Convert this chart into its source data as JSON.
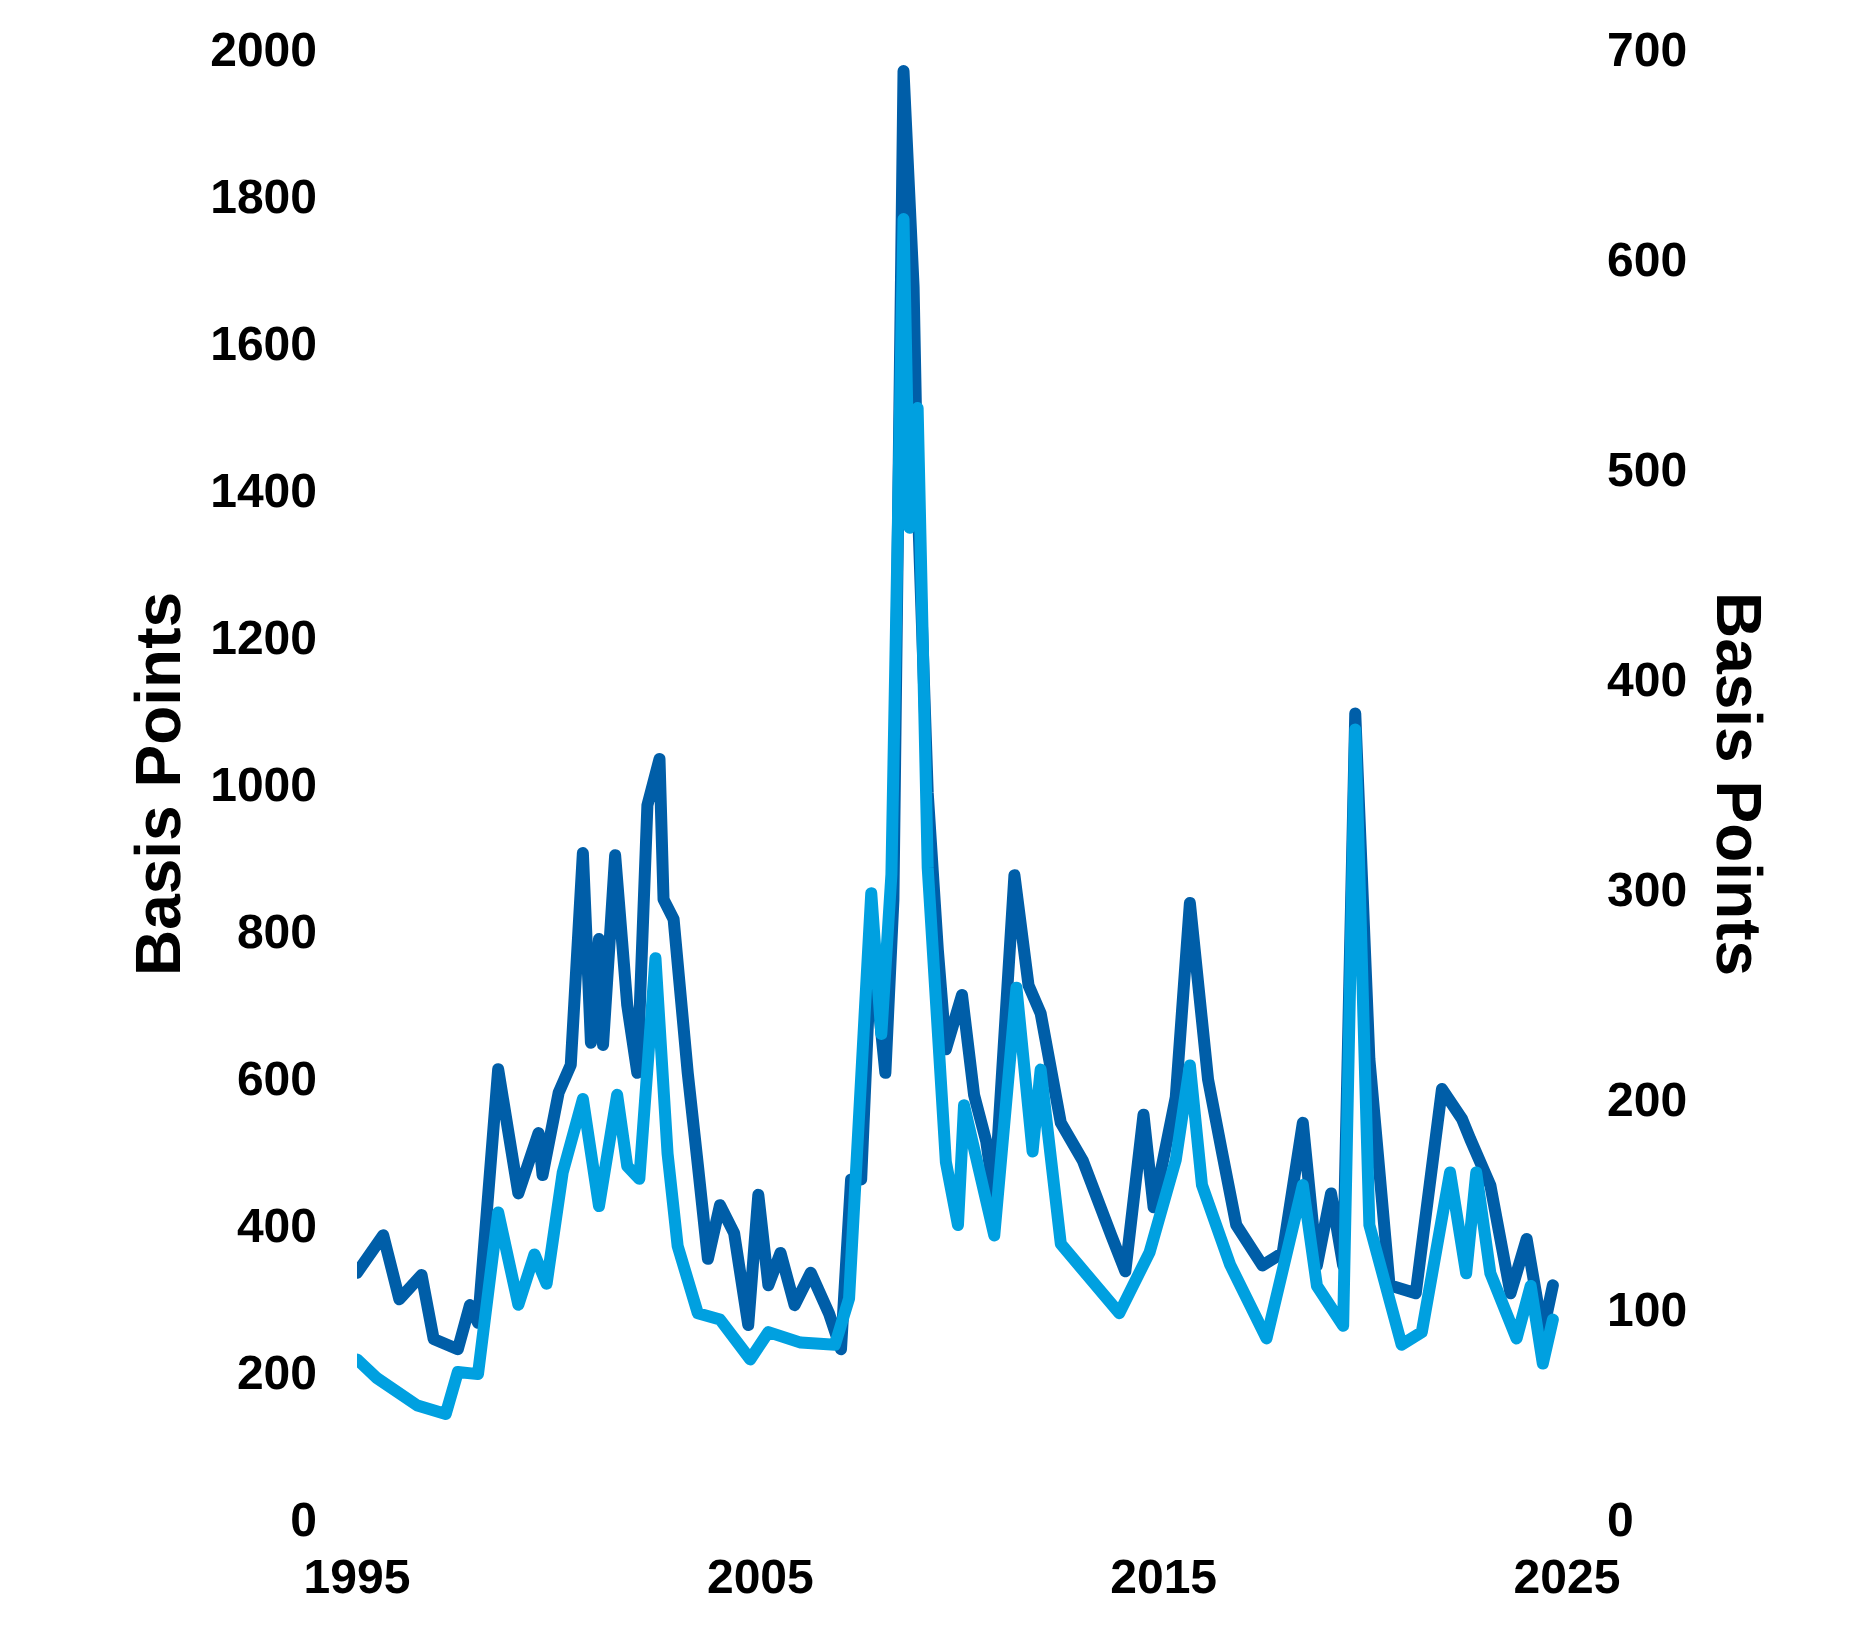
{
  "chart_data": {
    "type": "line",
    "ylabel": "Basis Points",
    "y2label": "Basis Points",
    "xlim": [
      1995,
      2025
    ],
    "xticks": [
      1995,
      2005,
      2015,
      2025
    ],
    "ylim": [
      0,
      2000
    ],
    "yticks": [
      0,
      200,
      400,
      600,
      800,
      1000,
      1200,
      1400,
      1600,
      1800,
      2000
    ],
    "y2lim": [
      0,
      700
    ],
    "y2ticks": [
      0,
      100,
      200,
      300,
      400,
      500,
      600,
      700
    ],
    "grid": false,
    "marker": "none",
    "line_style": "solid",
    "series": [
      {
        "color": "#005ea8",
        "x": [
          1995.0,
          1995.65,
          1996.05,
          1996.6,
          1996.9,
          1997.5,
          1997.8,
          1998.0,
          1998.5,
          1999.0,
          1999.5,
          1999.6,
          2000.0,
          2000.3,
          2000.6,
          2000.8,
          2001.0,
          2001.1,
          2001.4,
          2001.7,
          2001.95,
          2002.2,
          2002.5,
          2002.6,
          2002.85,
          2003.2,
          2003.45,
          2003.7,
          2004.0,
          2004.35,
          2004.7,
          2004.95,
          2005.2,
          2005.5,
          2005.85,
          2006.25,
          2006.7,
          2007.0,
          2007.25,
          2007.5,
          2007.7,
          2007.9,
          2008.1,
          2008.3,
          2008.55,
          2008.8,
          2008.9,
          2009.15,
          2009.4,
          2009.6,
          2010.0,
          2010.3,
          2010.6,
          2010.8,
          2011.3,
          2011.65,
          2011.95,
          2012.45,
          2013.0,
          2013.7,
          2014.05,
          2014.5,
          2014.75,
          2015.3,
          2015.65,
          2016.1,
          2016.45,
          2016.8,
          2017.45,
          2017.95,
          2018.45,
          2018.8,
          2019.15,
          2019.45,
          2019.75,
          2020.1,
          2020.6,
          2021.25,
          2021.9,
          2022.4,
          2022.6,
          2023.1,
          2023.6,
          2024.0,
          2024.4,
          2024.65
        ],
        "values": [
          335,
          386,
          299,
          332,
          245,
          231,
          291,
          267,
          612,
          443,
          525,
          468,
          580,
          618,
          906,
          648,
          789,
          645,
          903,
          699,
          607,
          971,
          1034,
          843,
          816,
          607,
          482,
          354,
          427,
          389,
          264,
          441,
          318,
          362,
          291,
          335,
          280,
          231,
          462,
          462,
          716,
          716,
          607,
          843,
          1970,
          1676,
          1388,
          988,
          775,
          639,
          713,
          577,
          514,
          438,
          876,
          726,
          688,
          539,
          487,
          386,
          337,
          550,
          424,
          574,
          838,
          598,
          498,
          400,
          345,
          362,
          539,
          345,
          443,
          345,
          1096,
          626,
          318,
          307,
          585,
          544,
          517,
          454,
          307,
          381,
          253,
          318
        ]
      },
      {
        "color": "#00a0e0",
        "axis": "y2",
        "x": [
          1995.0,
          1995.5,
          1996.5,
          1997.2,
          1997.5,
          1998.0,
          1998.5,
          1999.0,
          1999.4,
          1999.7,
          2000.1,
          2000.6,
          2001.0,
          2001.45,
          2001.7,
          2002.0,
          2002.4,
          2002.7,
          2002.95,
          2003.45,
          2004.0,
          2004.75,
          2005.2,
          2006.0,
          2006.85,
          2007.2,
          2007.75,
          2008.0,
          2008.25,
          2008.55,
          2008.7,
          2008.9,
          2009.15,
          2009.6,
          2009.9,
          2010.05,
          2010.8,
          2011.35,
          2011.75,
          2011.95,
          2012.45,
          2013.9,
          2014.65,
          2015.3,
          2015.65,
          2015.95,
          2016.65,
          2017.55,
          2018.45,
          2018.8,
          2019.45,
          2019.75,
          2020.1,
          2020.9,
          2021.4,
          2022.1,
          2022.5,
          2022.75,
          2023.1,
          2023.75,
          2024.1,
          2024.4,
          2024.65
        ],
        "values": [
          76,
          67,
          54,
          50,
          70,
          69,
          146,
          102,
          126,
          112,
          165,
          200,
          149,
          202,
          168,
          162,
          267,
          174,
          130,
          98,
          95,
          76,
          89,
          84,
          83,
          105,
          298,
          231,
          307,
          619,
          472,
          529,
          310,
          170,
          140,
          197,
          135,
          253,
          175,
          214,
          131,
          98,
          127,
          171,
          216,
          159,
          121,
          86,
          159,
          111,
          92,
          376,
          140,
          83,
          89,
          165,
          117,
          165,
          117,
          86,
          111,
          74,
          95
        ]
      }
    ]
  }
}
